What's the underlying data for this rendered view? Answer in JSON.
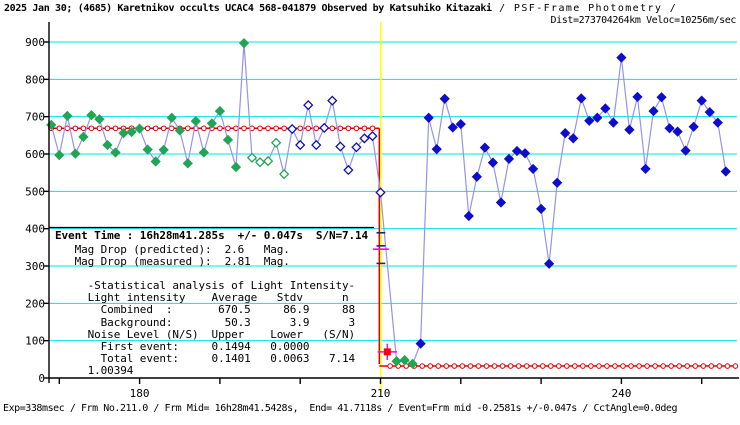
{
  "title": {
    "main_bold": "2025 Jan 30; (4685) Karetnikov occults UCAC4 568-041879 Observed by Katsuhiko Kitazaki",
    "main_regular": " / PSF-Frame Photometry /",
    "line2": "Dist=273704264km Veloc=10256m/sec"
  },
  "stats": {
    "heading": "Event Time : 16h28m41.285s  +/- 0.047s  S/N=7.14",
    "lines": [
      "   Mag Drop (predicted):  2.6   Mag.",
      "   Mag Drop (measured ):  2.81  Mag.",
      "",
      "     -Statistical analysis of Light Intensity-",
      "     Light intensity    Average   Stdv      n",
      "       Combined  :       670.5     86.9     88",
      "       Background:        50.3      3.9      3",
      "     Noise Level (N/S)  Upper    Lower   (S/N)",
      "       First event:     0.1494   0.0000",
      "       Total event:     0.1401   0.0063   7.14",
      "     1.00394"
    ]
  },
  "footer": "Exp=338msec / Frm No.211.0 / Frm Mid= 16h28m41.5428s,  End= 41.7118s / Event=Frm mid -0.2581s +/-0.047s / CctAngle=0.0deg",
  "chart_data": {
    "type": "line",
    "title": "Occultation light curve (PSF-Frame Photometry)",
    "xlabel": "",
    "ylabel": "",
    "xlim": [
      168.5,
      254.7
    ],
    "ylim": [
      0,
      900
    ],
    "grid": "horizontal-cyan",
    "y_ticks": [
      0,
      100,
      200,
      300,
      400,
      500,
      600,
      700,
      800,
      900
    ],
    "x_ticks_minor": [
      170,
      180,
      190,
      200,
      210,
      220,
      230,
      240,
      250
    ],
    "x_tick_labels": [
      180,
      210,
      240
    ],
    "event_line_x": 210.05,
    "colors": {
      "grid": "#00E5E5",
      "event_line": "#FFFF00",
      "model": "#DE0000",
      "curve": "#9494E8",
      "green": "#22A455",
      "blue": "#0D0DCB",
      "magenta": "#FF00FF",
      "navy": "#202080",
      "event_point": "#FF0000"
    },
    "series": [
      {
        "name": "baseline-green-solid",
        "marker": "diamond",
        "style": "solid",
        "color_key": "green",
        "points": [
          [
            169,
            678
          ],
          [
            170,
            597
          ],
          [
            171,
            702
          ],
          [
            172,
            601
          ],
          [
            173,
            646
          ],
          [
            174,
            704
          ],
          [
            175,
            693
          ],
          [
            176,
            624
          ],
          [
            177,
            604
          ],
          [
            178,
            656
          ],
          [
            179,
            659
          ],
          [
            180,
            668
          ],
          [
            181,
            612
          ],
          [
            182,
            580
          ],
          [
            183,
            611
          ],
          [
            184,
            697
          ],
          [
            185,
            663
          ],
          [
            186,
            575
          ],
          [
            187,
            688
          ],
          [
            188,
            604
          ],
          [
            189,
            682
          ],
          [
            190,
            715
          ],
          [
            191,
            638
          ],
          [
            192,
            565
          ],
          [
            193,
            897
          ]
        ]
      },
      {
        "name": "baseline-green-open",
        "marker": "diamond",
        "style": "open",
        "color_key": "green",
        "points": [
          [
            194,
            590
          ],
          [
            195,
            578
          ],
          [
            196,
            581
          ],
          [
            197,
            630
          ],
          [
            198,
            546
          ]
        ]
      },
      {
        "name": "baseline-blue-open",
        "marker": "diamond",
        "style": "open",
        "color_key": "blue",
        "points": [
          [
            199,
            667
          ],
          [
            200,
            624
          ],
          [
            201,
            731
          ],
          [
            202,
            624
          ],
          [
            203,
            670
          ],
          [
            204,
            743
          ],
          [
            205,
            620
          ],
          [
            206,
            557
          ],
          [
            207,
            618
          ],
          [
            208,
            642
          ],
          [
            209,
            648
          ],
          [
            210,
            497
          ]
        ]
      },
      {
        "name": "occultation-background-green",
        "marker": "diamond",
        "style": "solid",
        "color_key": "green",
        "points": [
          [
            212,
            45
          ],
          [
            213,
            48
          ],
          [
            214,
            38
          ]
        ]
      },
      {
        "name": "post-event-blue-solid",
        "marker": "diamond",
        "style": "solid",
        "color_key": "blue",
        "points": [
          [
            215,
            92
          ],
          [
            216,
            697
          ],
          [
            217,
            613
          ],
          [
            218,
            748
          ],
          [
            219,
            671
          ],
          [
            220,
            680
          ],
          [
            221,
            434
          ],
          [
            222,
            539
          ],
          [
            223,
            617
          ],
          [
            224,
            577
          ],
          [
            225,
            470
          ],
          [
            226,
            587
          ],
          [
            227,
            608
          ],
          [
            228,
            602
          ],
          [
            229,
            560
          ],
          [
            230,
            453
          ],
          [
            231,
            306
          ],
          [
            232,
            523
          ],
          [
            233,
            656
          ],
          [
            234,
            642
          ],
          [
            235,
            749
          ],
          [
            236,
            689
          ],
          [
            237,
            697
          ],
          [
            238,
            722
          ],
          [
            239,
            684
          ],
          [
            240,
            858
          ],
          [
            241,
            665
          ],
          [
            242,
            753
          ],
          [
            243,
            560
          ],
          [
            244,
            715
          ],
          [
            245,
            752
          ],
          [
            246,
            669
          ],
          [
            247,
            660
          ],
          [
            248,
            609
          ],
          [
            249,
            673
          ],
          [
            250,
            743
          ],
          [
            251,
            712
          ],
          [
            252,
            684
          ],
          [
            253,
            553
          ]
        ]
      }
    ],
    "model_line": {
      "high_level": 669,
      "low_level": 32,
      "drop_x": 209.85,
      "x_start": 168.6,
      "low_x_start": 210.7,
      "x_end": 254.5,
      "drop_circle": [
        210.0,
        497
      ]
    },
    "event_point": {
      "x": 210.85,
      "y": 70,
      "xerr": 1.2,
      "yerr": 22
    },
    "event_time_ticks": [
      {
        "value": 389,
        "half_width_frames": 0.55,
        "color_key": "navy"
      },
      {
        "value": 354,
        "half_width_frames": 0.55,
        "color_key": "navy"
      },
      {
        "value": 345,
        "half_width_frames": 1.0,
        "color_key": "magenta"
      },
      {
        "value": 307,
        "half_width_frames": 0.55,
        "color_key": "navy"
      }
    ],
    "legend": "none"
  }
}
